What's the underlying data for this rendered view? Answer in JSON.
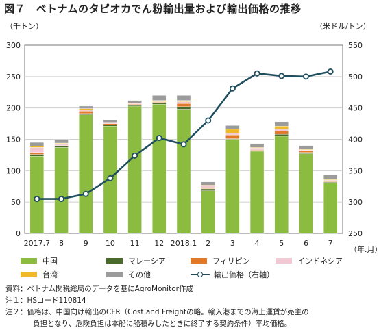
{
  "title": "図７　ベトナムのタピオカでん粉輸出量および輸出価格の推移",
  "left_unit": "（千トン）",
  "right_unit": "（米ドル/トン）",
  "x_unit": "（年.月）",
  "chart_data": {
    "type": "bar+line",
    "categories": [
      "2017.7",
      "8",
      "9",
      "10",
      "11",
      "12",
      "2018.1",
      "2",
      "3",
      "4",
      "5",
      "6",
      "7"
    ],
    "y_left": {
      "range": [
        0,
        300
      ],
      "ticks": [
        0,
        50,
        100,
        150,
        200,
        250,
        300
      ]
    },
    "y_right": {
      "range": [
        250,
        550
      ],
      "ticks": [
        250,
        300,
        350,
        400,
        450,
        500,
        550
      ]
    },
    "stack_series": [
      {
        "name": "中国",
        "color": "#8bbc3f",
        "values": [
          123,
          137,
          189,
          171,
          203,
          206,
          198,
          68,
          150,
          131,
          155,
          127,
          81
        ]
      },
      {
        "name": "マレーシア",
        "color": "#4a6a2a",
        "values": [
          3,
          2,
          2,
          2,
          2,
          2,
          4,
          3,
          1,
          1,
          3,
          2,
          1
        ]
      },
      {
        "name": "フィリピン",
        "color": "#e07a2a",
        "values": [
          3,
          1,
          4,
          2,
          1,
          1,
          5,
          1,
          6,
          1,
          5,
          3,
          1
        ]
      },
      {
        "name": "インドネシア",
        "color": "#f2c9d2",
        "values": [
          8,
          3,
          2,
          1,
          1,
          1,
          3,
          4,
          3,
          3,
          3,
          1,
          2
        ]
      },
      {
        "name": "台湾",
        "color": "#f0b92a",
        "values": [
          2,
          1,
          2,
          1,
          1,
          2,
          2,
          1,
          6,
          1,
          5,
          1,
          1
        ]
      },
      {
        "name": "その他",
        "color": "#9b9b9b",
        "values": [
          6,
          6,
          4,
          4,
          4,
          8,
          8,
          5,
          6,
          6,
          7,
          6,
          7
        ]
      }
    ],
    "line_series": {
      "name": "輸出価格（右軸）",
      "color": "#1f4e5f",
      "values": [
        305,
        305,
        313,
        338,
        374,
        402,
        392,
        430,
        481,
        505,
        501,
        500,
        508
      ]
    }
  },
  "notes": [
    "資料：ベトナム関税総局のデータを基にAgroMonitor作成",
    "注１：HSコード110814",
    "注２：価格は、中国向け輸出のCFR（Cost and Freightの略。輸入港までの海上運賃が売主の",
    "負担となり、危険負担は本船に船積みしたときに終了する契約条件）平均価格。"
  ]
}
